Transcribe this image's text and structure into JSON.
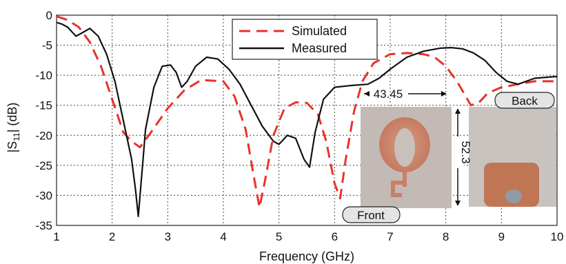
{
  "chart_data": {
    "type": "line",
    "xlabel": "Frequency (GHz)",
    "ylabel": "|S11| (dB)",
    "ylabel_parts": {
      "pre": "|S",
      "sub": "11",
      "post": "| (dB)"
    },
    "xlim": [
      1,
      10
    ],
    "ylim": [
      -35,
      0
    ],
    "xticks": [
      1,
      2,
      3,
      4,
      5,
      6,
      7,
      8,
      9,
      10
    ],
    "yticks": [
      0,
      -5,
      -10,
      -15,
      -20,
      -25,
      -30,
      -35
    ],
    "xtick_labels": [
      "1",
      "2",
      "3",
      "4",
      "5",
      "6",
      "7",
      "8",
      "9",
      "10"
    ],
    "ytick_labels": [
      "0",
      "-5",
      "-10",
      "-15",
      "-20",
      "-25",
      "-30",
      "-35"
    ],
    "grid": true,
    "legend_position": "top-center",
    "series": [
      {
        "name": "Simulated",
        "color": "#e8322b",
        "style": "dashed",
        "x": [
          1.0,
          1.2,
          1.4,
          1.6,
          1.8,
          2.0,
          2.2,
          2.35,
          2.5,
          2.7,
          3.0,
          3.3,
          3.6,
          4.0,
          4.2,
          4.4,
          4.55,
          4.65,
          4.75,
          4.9,
          5.1,
          5.3,
          5.5,
          5.7,
          5.85,
          6.0,
          6.1,
          6.2,
          6.35,
          6.5,
          6.7,
          7.0,
          7.3,
          7.6,
          7.8,
          8.0,
          8.2,
          8.45,
          8.6,
          8.75,
          9.0,
          9.3,
          9.6,
          10.0
        ],
        "y": [
          -0.2,
          -0.8,
          -2.0,
          -4.5,
          -8.5,
          -14.0,
          -19.5,
          -21.0,
          -22.0,
          -19.5,
          -15.5,
          -12.5,
          -10.8,
          -11.0,
          -13.5,
          -19.0,
          -27.0,
          -32.0,
          -27.5,
          -20.0,
          -15.5,
          -14.5,
          -14.6,
          -16.5,
          -21.0,
          -28.0,
          -30.5,
          -24.0,
          -16.0,
          -11.0,
          -8.0,
          -6.5,
          -6.3,
          -6.5,
          -7.0,
          -8.5,
          -11.0,
          -15.0,
          -14.5,
          -13.0,
          -12.0,
          -11.5,
          -11.0,
          -11.0
        ]
      },
      {
        "name": "Measured",
        "color": "#111111",
        "style": "solid",
        "x": [
          1.0,
          1.1,
          1.2,
          1.35,
          1.45,
          1.6,
          1.75,
          1.9,
          2.05,
          2.2,
          2.35,
          2.42,
          2.47,
          2.52,
          2.6,
          2.75,
          2.9,
          3.05,
          3.15,
          3.25,
          3.35,
          3.5,
          3.7,
          3.9,
          4.1,
          4.3,
          4.5,
          4.7,
          4.9,
          5.0,
          5.15,
          5.3,
          5.45,
          5.55,
          5.65,
          5.8,
          6.0,
          6.3,
          6.6,
          6.8,
          7.0,
          7.3,
          7.6,
          7.9,
          8.1,
          8.3,
          8.5,
          8.7,
          8.9,
          9.1,
          9.3,
          9.6,
          10.0
        ],
        "y": [
          -1.2,
          -1.5,
          -2.0,
          -3.5,
          -3.0,
          -2.2,
          -3.5,
          -6.5,
          -11.0,
          -17.5,
          -24.0,
          -29.0,
          -33.5,
          -28.0,
          -19.0,
          -12.0,
          -8.5,
          -8.3,
          -9.5,
          -12.0,
          -11.0,
          -8.5,
          -7.0,
          -7.3,
          -9.0,
          -11.5,
          -15.0,
          -18.5,
          -21.0,
          -21.5,
          -20.0,
          -20.5,
          -24.0,
          -25.3,
          -19.5,
          -14.0,
          -12.0,
          -11.7,
          -11.5,
          -10.5,
          -9.0,
          -7.0,
          -6.0,
          -5.5,
          -5.4,
          -5.6,
          -6.3,
          -7.5,
          -9.5,
          -11.0,
          -11.5,
          -10.5,
          -10.2
        ]
      }
    ]
  },
  "annotations": {
    "width_label": "43.45",
    "height_label": "52.3",
    "front_label": "Front",
    "back_label": "Back"
  },
  "photos": {
    "front_alt": "front-antenna-photo",
    "back_alt": "back-antenna-photo"
  }
}
